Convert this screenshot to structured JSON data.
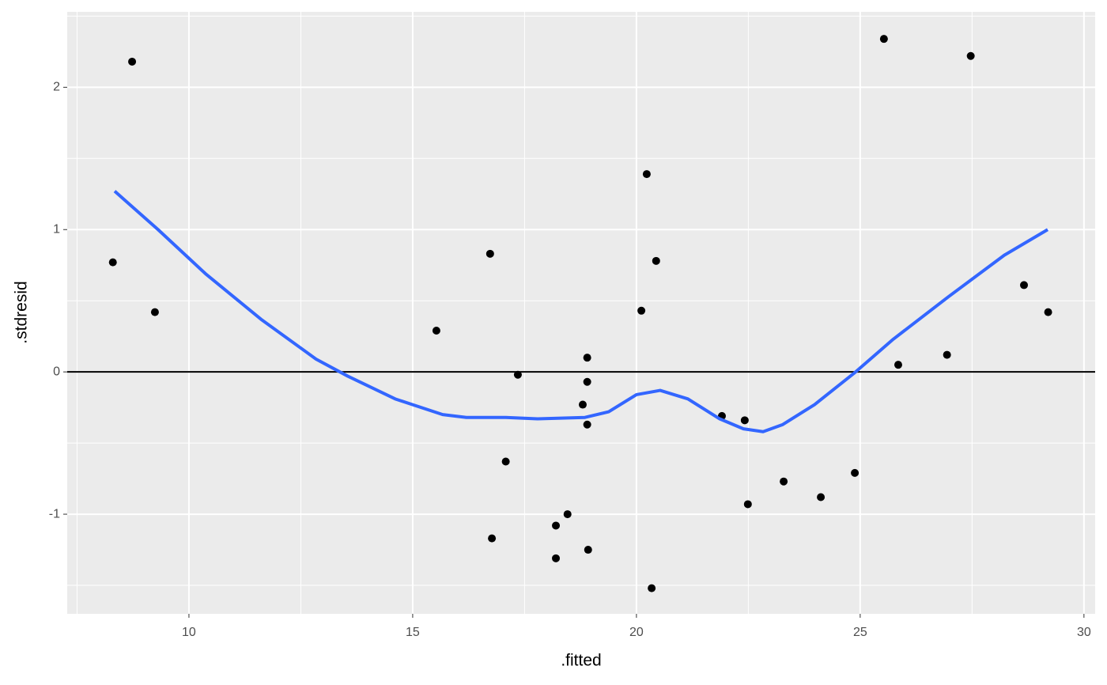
{
  "chart_data": {
    "type": "scatter",
    "x_label": ".fitted",
    "y_label": ".stdresid",
    "xlim": [
      7.28,
      30.25
    ],
    "ylim": [
      -1.7,
      2.53
    ],
    "xticks": [
      10,
      15,
      20,
      25,
      30
    ],
    "yticks": [
      -1,
      0,
      1,
      2
    ],
    "grid": true,
    "minor_grid": true,
    "panel_color": "#ebebeb",
    "hline": 0,
    "hline_color": "#000000",
    "series": [
      {
        "type": "scatter",
        "color": "#000000",
        "x": [
          8.3,
          8.73,
          9.24,
          15.53,
          16.73,
          16.77,
          17.08,
          17.35,
          18.2,
          18.2,
          18.46,
          18.8,
          18.9,
          18.9,
          18.9,
          18.92,
          20.11,
          20.23,
          20.34,
          20.44,
          21.91,
          22.42,
          22.49,
          23.29,
          24.12,
          24.88,
          25.53,
          25.85,
          26.94,
          27.47,
          28.66,
          29.2
        ],
        "values": [
          0.77,
          2.18,
          0.42,
          0.29,
          0.83,
          -1.17,
          -0.63,
          -0.02,
          -1.08,
          -1.31,
          -1.0,
          -0.23,
          0.1,
          -0.07,
          -0.37,
          -1.25,
          0.43,
          1.39,
          -1.52,
          0.78,
          -0.31,
          -0.34,
          -0.93,
          -0.77,
          -0.88,
          -0.71,
          2.34,
          0.05,
          0.12,
          2.22,
          0.61,
          0.42
        ]
      },
      {
        "type": "line",
        "color": "#3366ff",
        "x": [
          8.34,
          9.31,
          10.37,
          11.61,
          12.84,
          13.55,
          14.61,
          15.67,
          16.2,
          17.08,
          17.79,
          18.85,
          19.38,
          20.0,
          20.53,
          21.15,
          21.86,
          22.39,
          22.83,
          23.27,
          23.98,
          24.86,
          25.74,
          26.98,
          28.22,
          29.19
        ],
        "values": [
          1.27,
          1.0,
          0.69,
          0.37,
          0.09,
          -0.03,
          -0.19,
          -0.3,
          -0.32,
          -0.32,
          -0.33,
          -0.32,
          -0.28,
          -0.16,
          -0.13,
          -0.19,
          -0.33,
          -0.4,
          -0.42,
          -0.37,
          -0.23,
          -0.01,
          0.23,
          0.53,
          0.82,
          1.0
        ]
      }
    ]
  }
}
